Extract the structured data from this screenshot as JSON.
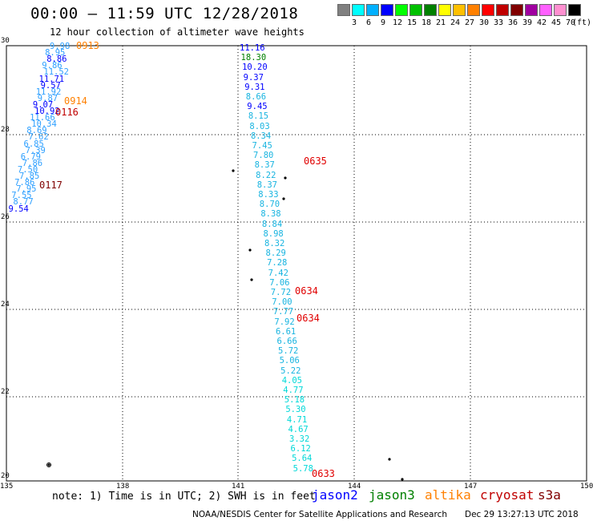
{
  "header": {
    "title": "00:00 – 11:59 UTC 12/28/2018",
    "subtitle": "12 hour collection of altimeter wave heights"
  },
  "legend": {
    "colors": [
      "#808080",
      "#00ffff",
      "#00b0ff",
      "#0000ff",
      "#00ff00",
      "#00c000",
      "#008000",
      "#ffff00",
      "#ffc000",
      "#ff8000",
      "#ff0000",
      "#c00000",
      "#800000",
      "#a000a0",
      "#ff60ff",
      "#ff90d0",
      "#000000"
    ],
    "labels": [
      "3",
      "6",
      "9",
      "12",
      "15",
      "18",
      "21",
      "24",
      "27",
      "30",
      "33",
      "36",
      "39",
      "42",
      "45",
      "70"
    ],
    "unit": "(ft)"
  },
  "axes": {
    "lat_ticks": [
      "30",
      "28",
      "26",
      "24",
      "22",
      "20"
    ],
    "lon_ticks": [
      "135",
      "138",
      "141",
      "144",
      "147",
      "150"
    ]
  },
  "tracks": {
    "west": [
      "9.98",
      "8.95",
      "8.86",
      "9.86",
      "11.52",
      "11.71",
      "9.57",
      "11.92",
      "9.87",
      "9.07",
      "10.92",
      "11.66",
      "10.34",
      "8.69",
      "7.62",
      "6.85",
      "7.39",
      "6.79",
      "7.86",
      "7.50",
      "7.85",
      "7.86",
      "7.95",
      "7.55",
      "8.77",
      "9.54"
    ],
    "center": [
      "11.16",
      "18.30",
      "10.20",
      "9.37",
      "9.31",
      "8.66",
      "9.45",
      "8.15",
      "8.03",
      "8.34",
      "7.45",
      "7.80",
      "8.37",
      "8.22",
      "8.37",
      "8.33",
      "8.70",
      "8.38",
      "8.84",
      "8.98",
      "8.32",
      "8.29",
      "7.28",
      "7.42",
      "7.06",
      "7.72",
      "7.00",
      "7.77",
      "7.92",
      "6.61",
      "6.66",
      "5.72",
      "5.06",
      "5.22",
      "4.05",
      "4.77",
      "5.18",
      "5.30",
      "4.71",
      "4.67",
      "3.32",
      "6.12",
      "5.64",
      "5.78"
    ]
  },
  "time_labels": {
    "t0913": "0913",
    "t0914": "0914",
    "t0116": "0116",
    "t0117": "0117",
    "t0635": "0635",
    "t0634a": "0634",
    "t0634b": "0634",
    "t0633": "0633"
  },
  "footer": {
    "note": "note: 1) Time is in UTC; 2) SWH is in feet",
    "satellites": [
      "jason2",
      "jason3",
      "altika",
      "cryosat",
      "s3a"
    ],
    "sat_colors": [
      "#0000ff",
      "#008000",
      "#ff8000",
      "#c00000",
      "#800000"
    ],
    "credit": "NOAA/NESDIS Center for Satellite Applications and Research",
    "timestamp": "Dec 29 13:27:13 UTC 2018"
  }
}
